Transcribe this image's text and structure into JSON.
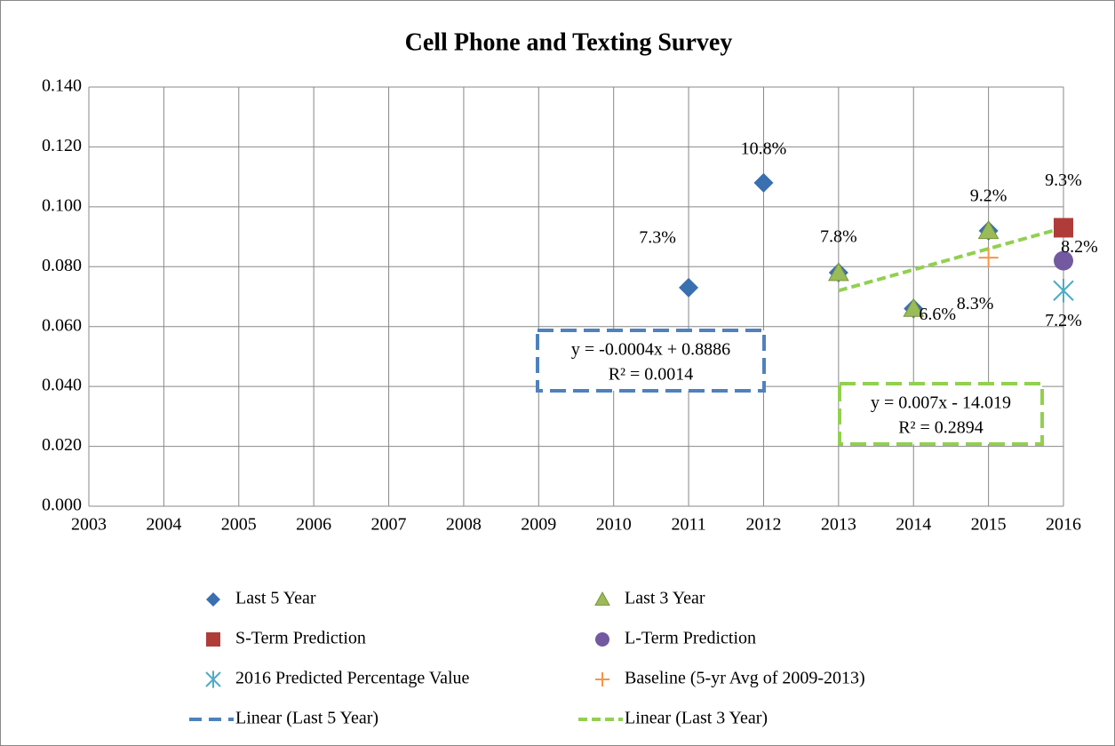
{
  "chart_data": {
    "type": "scatter",
    "title": "Cell Phone and Texting Survey",
    "xlim": [
      2003,
      2016
    ],
    "xticks": [
      2003,
      2004,
      2005,
      2006,
      2007,
      2008,
      2009,
      2010,
      2011,
      2012,
      2013,
      2014,
      2015,
      2016
    ],
    "ylim": [
      0,
      0.14
    ],
    "yticks": [
      {
        "value": 0,
        "label": "0.000"
      },
      {
        "value": 0.02,
        "label": "0.020"
      },
      {
        "value": 0.04,
        "label": "0.040"
      },
      {
        "value": 0.06,
        "label": "0.060"
      },
      {
        "value": 0.08,
        "label": "0.080"
      },
      {
        "value": 0.1,
        "label": "0.100"
      },
      {
        "value": 0.12,
        "label": "0.120"
      },
      {
        "value": 0.14,
        "label": "0.140"
      }
    ],
    "grid": true,
    "legend": "bottom",
    "series": [
      {
        "name": "Last 5 Year",
        "color": "#3a6fb0",
        "marker": "diamond",
        "x": [
          2011,
          2012,
          2013,
          2014,
          2015
        ],
        "values": [
          0.073,
          0.108,
          0.078,
          0.066,
          0.092
        ],
        "value_labels": [
          "7.3%",
          "10.8%",
          "7.8%",
          "6.6%",
          "9.2%"
        ]
      },
      {
        "name": "Last 3 Year",
        "color": "#77933c",
        "marker": "triangle",
        "x": [
          2013,
          2014,
          2015
        ],
        "values": [
          0.078,
          0.066,
          0.092
        ]
      },
      {
        "name": "S-Term Prediction",
        "color": "#b03c39",
        "marker": "square",
        "x": [
          2016
        ],
        "values": [
          0.093
        ],
        "value_labels": [
          "9.3%"
        ]
      },
      {
        "name": "L-Term Prediction",
        "color": "#7359a0",
        "marker": "circle",
        "x": [
          2016
        ],
        "values": [
          0.082
        ],
        "value_labels": [
          "8.2%"
        ]
      },
      {
        "name": "2016 Predicted Percentage Value",
        "color": "#4bacc6",
        "marker": "x",
        "x": [
          2016
        ],
        "values": [
          0.072
        ],
        "value_labels": [
          "7.2%"
        ]
      },
      {
        "name": "Baseline (5-yr Avg of 2009-2013)",
        "color": "#f79646",
        "marker": "plus",
        "x": [
          2015
        ],
        "values": [
          0.083
        ],
        "value_labels": [
          "8.3%"
        ]
      }
    ],
    "trendlines": [
      {
        "name": "Linear (Last 5 Year)",
        "color": "#4f81bd",
        "equation": "y = -0.0004x + 0.8886",
        "r2": "R² = 0.0014"
      },
      {
        "name": "Linear (Last 3 Year)",
        "color": "#92d050",
        "equation": "y = 0.007x - 14.019",
        "r2": "R² = 0.2894",
        "x": [
          2013,
          2016
        ],
        "values": [
          0.072,
          0.093
        ]
      }
    ]
  }
}
